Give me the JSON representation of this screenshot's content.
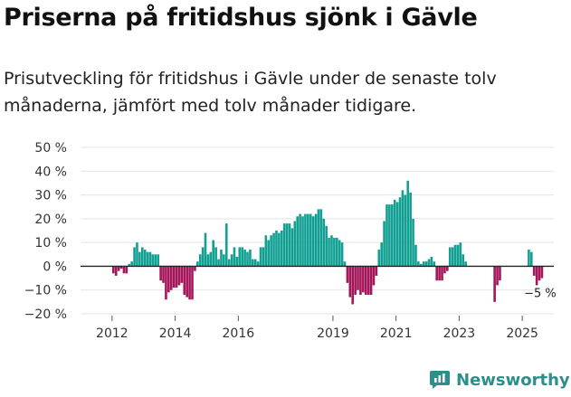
{
  "title": "Priserna på fritidshus sjönk i Gävle",
  "subtitle": "Prisutveckling för fritidshus i Gävle under de senaste tolv månaderna, jämfört med tolv månader tidigare.",
  "brand": "Newsworthy",
  "colors": {
    "positive": "#12a092",
    "negative": "#a5155a",
    "grid": "#e3e3e3",
    "axis": "#222222",
    "brand": "#2d8f8c"
  },
  "chart_data": {
    "type": "bar",
    "x_unit": "month",
    "ylim": [
      -20,
      50
    ],
    "yticks": [
      -20,
      -10,
      0,
      10,
      20,
      30,
      40,
      50
    ],
    "ytick_labels": [
      "−20 %",
      "−10 %",
      "0 %",
      "10 %",
      "20 %",
      "30 %",
      "40 %",
      "50 %"
    ],
    "xticks": [
      "2012",
      "2014",
      "2016",
      "2019",
      "2021",
      "2023",
      "2025"
    ],
    "annotation": {
      "label": "−5 %",
      "target": "2025-08"
    },
    "series": [
      {
        "values": [
          [
            "2012-01",
            -3
          ],
          [
            "2012-02",
            -4
          ],
          [
            "2012-03",
            -2
          ],
          [
            "2012-04",
            -1
          ],
          [
            "2012-05",
            -3
          ],
          [
            "2012-06",
            -3
          ],
          [
            "2012-07",
            1
          ],
          [
            "2012-08",
            2
          ],
          [
            "2012-09",
            8
          ],
          [
            "2012-10",
            10
          ],
          [
            "2012-11",
            6
          ],
          [
            "2012-12",
            8
          ],
          [
            "2013-01",
            7
          ],
          [
            "2013-02",
            6
          ],
          [
            "2013-03",
            6
          ],
          [
            "2013-04",
            5
          ],
          [
            "2013-05",
            5
          ],
          [
            "2013-06",
            5
          ],
          [
            "2013-07",
            -6
          ],
          [
            "2013-08",
            -7
          ],
          [
            "2013-09",
            -14
          ],
          [
            "2013-10",
            -11
          ],
          [
            "2013-11",
            -10
          ],
          [
            "2013-12",
            -9
          ],
          [
            "2014-01",
            -9
          ],
          [
            "2014-02",
            -8
          ],
          [
            "2014-03",
            -7
          ],
          [
            "2014-04",
            -12
          ],
          [
            "2014-05",
            -13
          ],
          [
            "2014-06",
            -14
          ],
          [
            "2014-07",
            -14
          ],
          [
            "2014-08",
            -2
          ],
          [
            "2014-09",
            2
          ],
          [
            "2014-10",
            5
          ],
          [
            "2014-11",
            8
          ],
          [
            "2014-12",
            14
          ],
          [
            "2015-01",
            5
          ],
          [
            "2015-02",
            6
          ],
          [
            "2015-03",
            11
          ],
          [
            "2015-04",
            8
          ],
          [
            "2015-05",
            3
          ],
          [
            "2015-06",
            7
          ],
          [
            "2015-07",
            5
          ],
          [
            "2015-08",
            18
          ],
          [
            "2015-09",
            3
          ],
          [
            "2015-10",
            5
          ],
          [
            "2015-11",
            8
          ],
          [
            "2015-12",
            4
          ],
          [
            "2016-01",
            8
          ],
          [
            "2016-02",
            8
          ],
          [
            "2016-03",
            7
          ],
          [
            "2016-04",
            6
          ],
          [
            "2016-05",
            7
          ],
          [
            "2016-06",
            3
          ],
          [
            "2016-07",
            3
          ],
          [
            "2016-08",
            2
          ],
          [
            "2016-09",
            8
          ],
          [
            "2016-10",
            8
          ],
          [
            "2016-11",
            13
          ],
          [
            "2016-12",
            11
          ],
          [
            "2017-01",
            13
          ],
          [
            "2017-02",
            14
          ],
          [
            "2017-03",
            15
          ],
          [
            "2017-04",
            14
          ],
          [
            "2017-05",
            15
          ],
          [
            "2017-06",
            18
          ],
          [
            "2017-07",
            18
          ],
          [
            "2017-08",
            18
          ],
          [
            "2017-09",
            16
          ],
          [
            "2017-10",
            19
          ],
          [
            "2017-11",
            21
          ],
          [
            "2017-12",
            22
          ],
          [
            "2018-01",
            21
          ],
          [
            "2018-02",
            22
          ],
          [
            "2018-03",
            22
          ],
          [
            "2018-04",
            22
          ],
          [
            "2018-05",
            21
          ],
          [
            "2018-06",
            22
          ],
          [
            "2018-07",
            24
          ],
          [
            "2018-08",
            24
          ],
          [
            "2018-09",
            20
          ],
          [
            "2018-10",
            17
          ],
          [
            "2018-11",
            12
          ],
          [
            "2018-12",
            13
          ],
          [
            "2019-01",
            12
          ],
          [
            "2019-02",
            12
          ],
          [
            "2019-03",
            11
          ],
          [
            "2019-04",
            10
          ],
          [
            "2019-05",
            2
          ],
          [
            "2019-06",
            -7
          ],
          [
            "2019-07",
            -13
          ],
          [
            "2019-08",
            -16
          ],
          [
            "2019-09",
            -12
          ],
          [
            "2019-10",
            -10
          ],
          [
            "2019-11",
            -12
          ],
          [
            "2019-12",
            -11
          ],
          [
            "2020-01",
            -12
          ],
          [
            "2020-02",
            -12
          ],
          [
            "2020-03",
            -12
          ],
          [
            "2020-04",
            -8
          ],
          [
            "2020-05",
            -4
          ],
          [
            "2020-06",
            7
          ],
          [
            "2020-07",
            10
          ],
          [
            "2020-08",
            19
          ],
          [
            "2020-09",
            26
          ],
          [
            "2020-10",
            26
          ],
          [
            "2020-11",
            26
          ],
          [
            "2020-12",
            28
          ],
          [
            "2021-01",
            27
          ],
          [
            "2021-02",
            29
          ],
          [
            "2021-03",
            32
          ],
          [
            "2021-04",
            30
          ],
          [
            "2021-05",
            36
          ],
          [
            "2021-06",
            31
          ],
          [
            "2021-07",
            20
          ],
          [
            "2021-08",
            9
          ],
          [
            "2021-09",
            2
          ],
          [
            "2021-10",
            1
          ],
          [
            "2021-11",
            2
          ],
          [
            "2021-12",
            2
          ],
          [
            "2022-01",
            3
          ],
          [
            "2022-02",
            4
          ],
          [
            "2022-03",
            2
          ],
          [
            "2022-04",
            -6
          ],
          [
            "2022-05",
            -6
          ],
          [
            "2022-06",
            -6
          ],
          [
            "2022-07",
            -3
          ],
          [
            "2022-08",
            -2
          ],
          [
            "2022-09",
            8
          ],
          [
            "2022-10",
            8
          ],
          [
            "2022-11",
            9
          ],
          [
            "2022-12",
            9
          ],
          [
            "2023-01",
            10
          ],
          [
            "2023-02",
            5
          ],
          [
            "2023-03",
            2
          ],
          [
            "2023-04",
            null
          ],
          [
            "2023-05",
            null
          ],
          [
            "2023-06",
            null
          ],
          [
            "2023-07",
            null
          ],
          [
            "2023-08",
            null
          ],
          [
            "2023-09",
            null
          ],
          [
            "2023-10",
            null
          ],
          [
            "2023-11",
            null
          ],
          [
            "2023-12",
            null
          ],
          [
            "2024-01",
            null
          ],
          [
            "2024-02",
            -15
          ],
          [
            "2024-03",
            -8
          ],
          [
            "2024-04",
            -6
          ],
          [
            "2024-05",
            null
          ],
          [
            "2024-06",
            null
          ],
          [
            "2024-07",
            null
          ],
          [
            "2024-08",
            null
          ],
          [
            "2024-09",
            null
          ],
          [
            "2024-10",
            null
          ],
          [
            "2024-11",
            null
          ],
          [
            "2024-12",
            null
          ],
          [
            "2025-01",
            null
          ],
          [
            "2025-02",
            null
          ],
          [
            "2025-03",
            7
          ],
          [
            "2025-04",
            6
          ],
          [
            "2025-05",
            -4
          ],
          [
            "2025-06",
            -8
          ],
          [
            "2025-07",
            -6
          ],
          [
            "2025-08",
            -5
          ]
        ]
      }
    ]
  }
}
